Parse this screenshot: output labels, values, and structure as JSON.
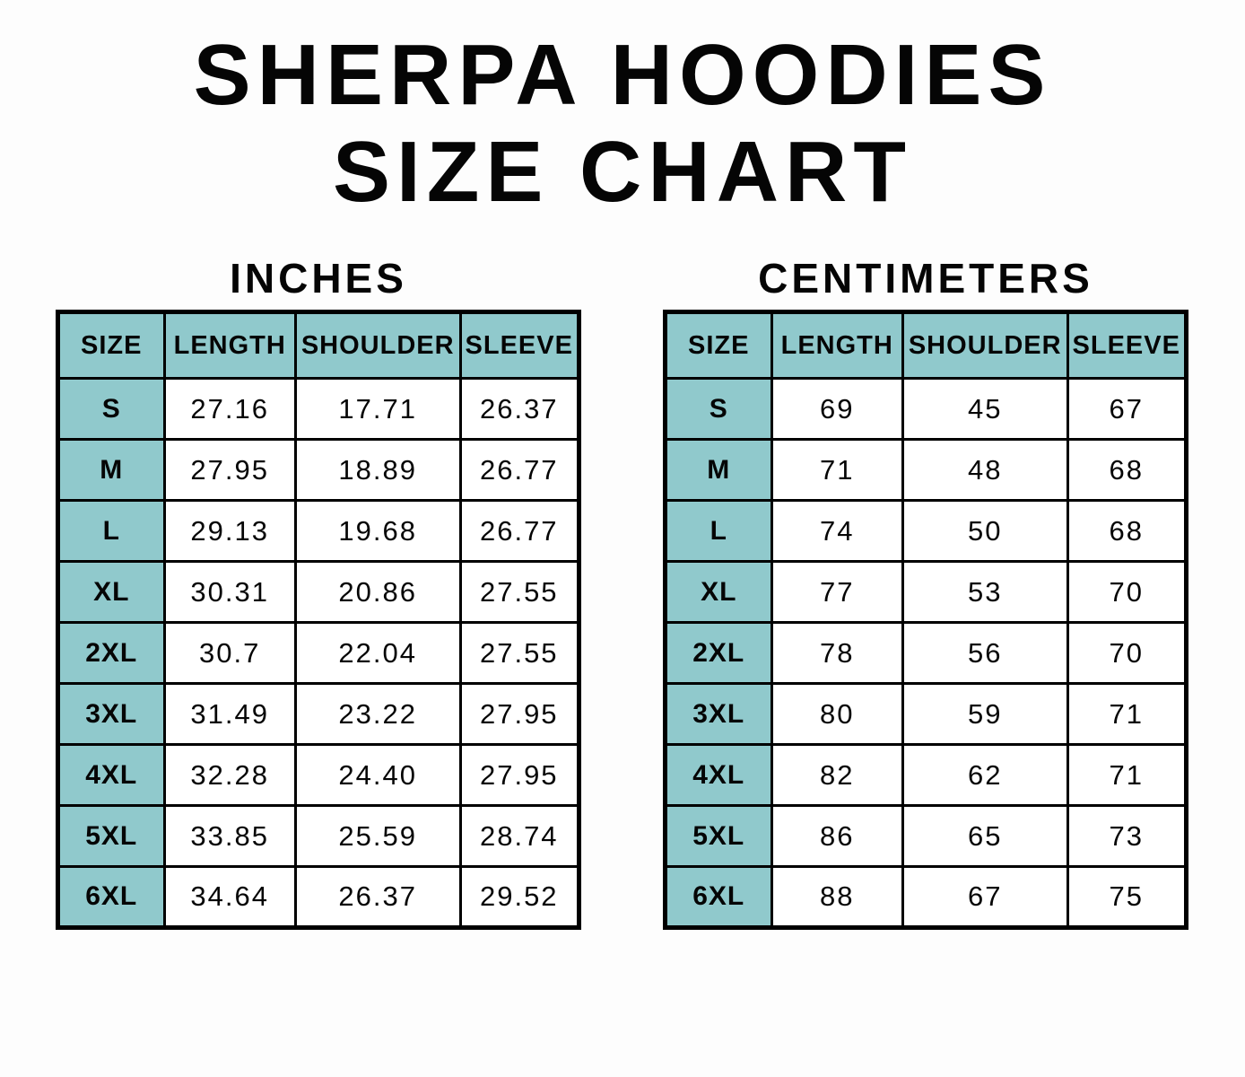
{
  "page": {
    "title_line1": "SHERPA HOODIES",
    "title_line2": "SIZE CHART"
  },
  "colors": {
    "header_teal": "#90c9cc",
    "border": "#000000",
    "background": "#fdfdfd",
    "text": "#050505"
  },
  "tables": [
    {
      "heading": "INCHES",
      "columns": [
        "SIZE",
        "LENGTH",
        "SHOULDER",
        "SLEEVE"
      ],
      "rows": [
        [
          "S",
          "27.16",
          "17.71",
          "26.37"
        ],
        [
          "M",
          "27.95",
          "18.89",
          "26.77"
        ],
        [
          "L",
          "29.13",
          "19.68",
          "26.77"
        ],
        [
          "XL",
          "30.31",
          "20.86",
          "27.55"
        ],
        [
          "2XL",
          "30.7",
          "22.04",
          "27.55"
        ],
        [
          "3XL",
          "31.49",
          "23.22",
          "27.95"
        ],
        [
          "4XL",
          "32.28",
          "24.40",
          "27.95"
        ],
        [
          "5XL",
          "33.85",
          "25.59",
          "28.74"
        ],
        [
          "6XL",
          "34.64",
          "26.37",
          "29.52"
        ]
      ]
    },
    {
      "heading": "CENTIMETERS",
      "columns": [
        "SIZE",
        "LENGTH",
        "SHOULDER",
        "SLEEVE"
      ],
      "rows": [
        [
          "S",
          "69",
          "45",
          "67"
        ],
        [
          "M",
          "71",
          "48",
          "68"
        ],
        [
          "L",
          "74",
          "50",
          "68"
        ],
        [
          "XL",
          "77",
          "53",
          "70"
        ],
        [
          "2XL",
          "78",
          "56",
          "70"
        ],
        [
          "3XL",
          "80",
          "59",
          "71"
        ],
        [
          "4XL",
          "82",
          "62",
          "71"
        ],
        [
          "5XL",
          "86",
          "65",
          "73"
        ],
        [
          "6XL",
          "88",
          "67",
          "75"
        ]
      ]
    }
  ],
  "chart_data": [
    {
      "type": "table",
      "title": "INCHES",
      "columns": [
        "SIZE",
        "LENGTH",
        "SHOULDER",
        "SLEEVE"
      ],
      "rows": [
        [
          "S",
          27.16,
          17.71,
          26.37
        ],
        [
          "M",
          27.95,
          18.89,
          26.77
        ],
        [
          "L",
          29.13,
          19.68,
          26.77
        ],
        [
          "XL",
          30.31,
          20.86,
          27.55
        ],
        [
          "2XL",
          30.7,
          22.04,
          27.55
        ],
        [
          "3XL",
          31.49,
          23.22,
          27.95
        ],
        [
          "4XL",
          32.28,
          24.4,
          27.95
        ],
        [
          "5XL",
          33.85,
          25.59,
          28.74
        ],
        [
          "6XL",
          34.64,
          26.37,
          29.52
        ]
      ]
    },
    {
      "type": "table",
      "title": "CENTIMETERS",
      "columns": [
        "SIZE",
        "LENGTH",
        "SHOULDER",
        "SLEEVE"
      ],
      "rows": [
        [
          "S",
          69,
          45,
          67
        ],
        [
          "M",
          71,
          48,
          68
        ],
        [
          "L",
          74,
          50,
          68
        ],
        [
          "XL",
          77,
          53,
          70
        ],
        [
          "2XL",
          78,
          56,
          70
        ],
        [
          "3XL",
          80,
          59,
          71
        ],
        [
          "4XL",
          82,
          62,
          71
        ],
        [
          "5XL",
          86,
          65,
          73
        ],
        [
          "6XL",
          88,
          67,
          75
        ]
      ]
    }
  ]
}
